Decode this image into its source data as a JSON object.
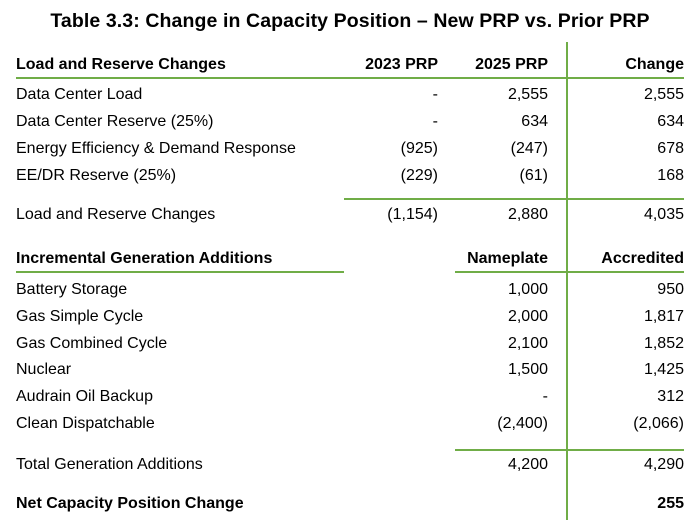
{
  "title": "Table 3.3:  Change in Capacity Position – New PRP vs. Prior PRP",
  "section1": {
    "header": {
      "label": "Load and Reserve Changes",
      "col1": "2023 PRP",
      "col2": "2025 PRP",
      "col3": "Change"
    },
    "rows": [
      {
        "label": "Data Center Load",
        "col1": "-",
        "col2": "2,555",
        "col3": "2,555"
      },
      {
        "label": "Data Center Reserve (25%)",
        "col1": "-",
        "col2": "634",
        "col3": "634"
      },
      {
        "label": "Energy Efficiency & Demand Response",
        "col1": "(925)",
        "col2": "(247)",
        "col3": "678"
      },
      {
        "label": "EE/DR Reserve (25%)",
        "col1": "(229)",
        "col2": "(61)",
        "col3": "168"
      }
    ],
    "total": {
      "label": "Load and Reserve Changes",
      "col1": "(1,154)",
      "col2": "2,880",
      "col3": "4,035"
    }
  },
  "section2": {
    "header": {
      "label": "Incremental Generation Additions",
      "col2": "Nameplate",
      "col3": "Accredited"
    },
    "rows": [
      {
        "label": "Battery Storage",
        "col2": "1,000",
        "col3": "950"
      },
      {
        "label": "Gas Simple Cycle",
        "col2": "2,000",
        "col3": "1,817"
      },
      {
        "label": "Gas Combined Cycle",
        "col2": "2,100",
        "col3": "1,852"
      },
      {
        "label": "Nuclear",
        "col2": "1,500",
        "col3": "1,425"
      },
      {
        "label": "Audrain Oil Backup",
        "col2": "-",
        "col3": "312"
      },
      {
        "label": "Clean Dispatchable",
        "col2": "(2,400)",
        "col3": "(2,066)"
      }
    ],
    "total": {
      "label": "Total Generation Additions",
      "col2": "4,200",
      "col3": "4,290"
    }
  },
  "net": {
    "label": "Net Capacity Position Change",
    "col3": "255"
  },
  "accent_color": "#70ad47"
}
